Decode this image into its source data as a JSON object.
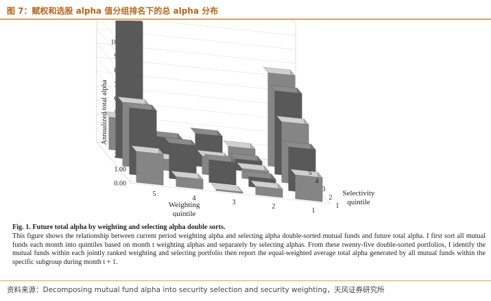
{
  "header": {
    "title": "图 7：赋权和选股 alpha 值分组排名下的总 alpha 分布"
  },
  "chart_data": {
    "type": "bar3d",
    "ylabel": "Annualized total alpha",
    "yticks": [
      "0.00",
      "1.00",
      "2.00",
      "3.00",
      "4.00",
      "5.00",
      "6.00",
      "7.00",
      "8.00",
      "9.00",
      "10.00"
    ],
    "ylim": [
      0,
      10
    ],
    "weighting_axis": {
      "title_line1": "Weighting",
      "title_line2": "quintile",
      "labels": [
        "5",
        "4",
        "3",
        "2",
        "1"
      ]
    },
    "selectivity_axis": {
      "title_line1": "Selectivity",
      "title_line2": "quintile",
      "labels": [
        "1",
        "2",
        "3",
        "4",
        "5"
      ]
    },
    "weighting_quintiles": [
      "5",
      "4",
      "3",
      "2",
      "1"
    ],
    "selectivity_quintiles": [
      "1",
      "2",
      "3",
      "4",
      "5"
    ],
    "values": [
      [
        1.7,
        0.6,
        0.1,
        0.7,
        2.2
      ],
      [
        3.1,
        0.7,
        1.6,
        2.5,
        4.7
      ],
      [
        4.3,
        0.7,
        1.3,
        0.8,
        4.5
      ],
      [
        5.9,
        0.8,
        2.3,
        1.8,
        9.8
      ],
      [
        6.6,
        1.1,
        0.5,
        1.1,
        2.3
      ]
    ],
    "colors": {
      "light": "#a6a6a6",
      "dark": "#6f6f6f",
      "text": "#222222"
    }
  },
  "caption": {
    "title": "Fig. 1.  Future total alpha by weighting and selecting alpha double sorts.",
    "body": "This figure shows the relationship between current period weighting alpha and selecting alpha double-sorted mutual funds and future total alpha. I first sort all mutual funds each month into quintiles based on month t weighting alphas and separately by selecting alphas. From these twenty-five double-sorted portfolios, I identify the mutual funds within each jointly ranked weighting and selecting portfolio then report the equal-weighted average total alpha generated by all mutual funds within the specific subgroup during month t + 1."
  },
  "footer": {
    "source": "资料来源：Decomposing mutual fund alpha into security selection and security weighting，天风证券研究所"
  }
}
